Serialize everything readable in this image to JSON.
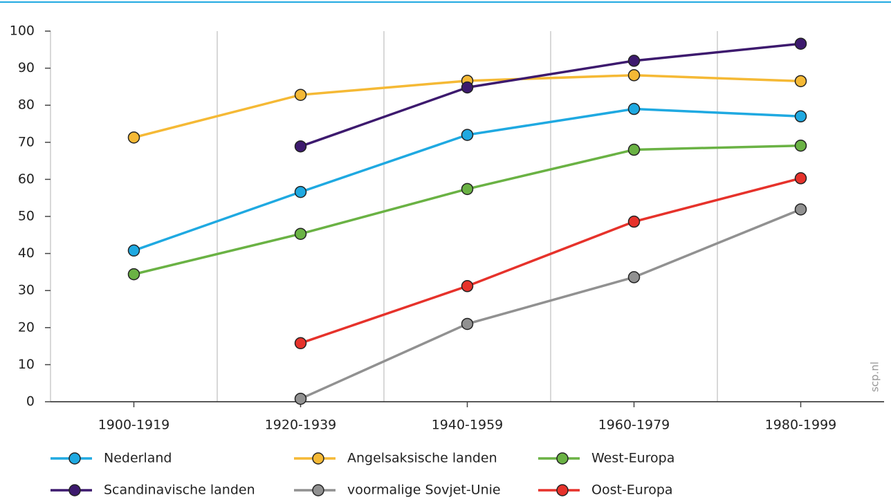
{
  "chart_data": {
    "type": "line",
    "categories": [
      "1900-1919",
      "1920-1939",
      "1940-1959",
      "1960-1979",
      "1980-1999"
    ],
    "series": [
      {
        "name": "Nederland",
        "color": "#1fa9e1",
        "values": [
          40.8,
          56.6,
          72,
          79,
          77
        ]
      },
      {
        "name": "Angelsaksische landen",
        "color": "#f5b935",
        "values": [
          71.3,
          82.8,
          86.6,
          88.1,
          86.5
        ]
      },
      {
        "name": "West-Europa",
        "color": "#6ab244",
        "values": [
          34.4,
          45.3,
          57.4,
          68,
          69.1
        ]
      },
      {
        "name": "Scandinavische landen",
        "color": "#3d1a6e",
        "values": [
          null,
          68.9,
          84.8,
          92,
          96.6
        ]
      },
      {
        "name": "voormalige Sovjet-Unie",
        "color": "#919191",
        "values": [
          null,
          0.8,
          21,
          33.6,
          51.9
        ]
      },
      {
        "name": "Oost-Europa",
        "color": "#e6322b",
        "values": [
          null,
          15.8,
          31.2,
          48.6,
          60.3
        ]
      }
    ],
    "ylim": [
      0,
      100
    ],
    "yticks": [
      0,
      10,
      20,
      30,
      40,
      50,
      60,
      70,
      80,
      90,
      100
    ],
    "grid": "vertical",
    "legend": "bottom",
    "watermark": "scp.nl"
  }
}
